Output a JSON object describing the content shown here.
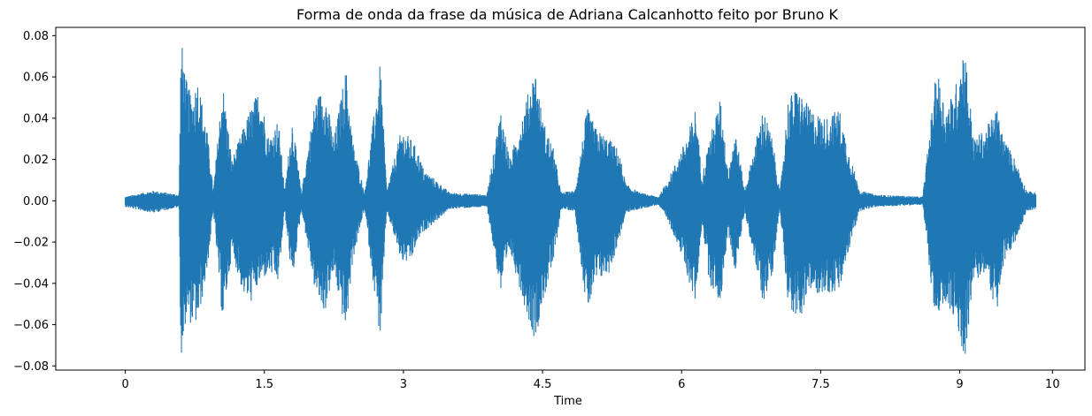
{
  "chart_data": {
    "type": "area",
    "title": "Forma de onda da frase da música de Adriana Calcanhotto feito por Bruno K",
    "xlabel": "Time",
    "ylabel": "",
    "xlim": [
      -0.75,
      10.35
    ],
    "ylim": [
      -0.082,
      0.084
    ],
    "x_ticks": [
      0,
      1.5,
      3,
      4.5,
      6,
      7.5,
      9,
      10
    ],
    "x_tick_labels": [
      "0",
      "1.5",
      "3",
      "4.5",
      "6",
      "7.5",
      "9",
      "10"
    ],
    "y_ticks": [
      -0.08,
      -0.06,
      -0.04,
      -0.02,
      0.0,
      0.02,
      0.04,
      0.06,
      0.08
    ],
    "y_tick_labels": [
      "−0.08",
      "−0.06",
      "−0.04",
      "−0.02",
      "0.00",
      "0.02",
      "0.04",
      "0.06",
      "0.08"
    ],
    "grid": false,
    "color": "#1f77b4",
    "series": [
      {
        "duration": 9.82,
        "envelope_points": [
          {
            "t": 0.0,
            "max": 0.002,
            "min": -0.003
          },
          {
            "t": 0.3,
            "max": 0.005,
            "min": -0.006
          },
          {
            "t": 0.58,
            "max": 0.003,
            "min": -0.003
          },
          {
            "t": 0.6,
            "max": 0.075,
            "min": -0.076
          },
          {
            "t": 0.62,
            "max": 0.075,
            "min": -0.076
          },
          {
            "t": 0.65,
            "max": 0.06,
            "min": -0.058
          },
          {
            "t": 0.72,
            "max": 0.05,
            "min": -0.06
          },
          {
            "t": 0.78,
            "max": 0.06,
            "min": -0.06
          },
          {
            "t": 0.88,
            "max": 0.035,
            "min": -0.035
          },
          {
            "t": 0.95,
            "max": 0.005,
            "min": -0.005
          },
          {
            "t": 1.05,
            "max": 0.058,
            "min": -0.06
          },
          {
            "t": 1.15,
            "max": 0.02,
            "min": -0.025
          },
          {
            "t": 1.27,
            "max": 0.035,
            "min": -0.045
          },
          {
            "t": 1.35,
            "max": 0.045,
            "min": -0.05
          },
          {
            "t": 1.45,
            "max": 0.055,
            "min": -0.04
          },
          {
            "t": 1.55,
            "max": 0.03,
            "min": -0.035
          },
          {
            "t": 1.65,
            "max": 0.04,
            "min": -0.04
          },
          {
            "t": 1.72,
            "max": 0.005,
            "min": -0.005
          },
          {
            "t": 1.8,
            "max": 0.04,
            "min": -0.04
          },
          {
            "t": 1.9,
            "max": 0.004,
            "min": -0.004
          },
          {
            "t": 2.05,
            "max": 0.05,
            "min": -0.045
          },
          {
            "t": 2.15,
            "max": 0.055,
            "min": -0.055
          },
          {
            "t": 2.25,
            "max": 0.03,
            "min": -0.035
          },
          {
            "t": 2.38,
            "max": 0.065,
            "min": -0.065
          },
          {
            "t": 2.45,
            "max": 0.03,
            "min": -0.03
          },
          {
            "t": 2.58,
            "max": 0.004,
            "min": -0.004
          },
          {
            "t": 2.75,
            "max": 0.067,
            "min": -0.068
          },
          {
            "t": 2.82,
            "max": 0.005,
            "min": -0.005
          },
          {
            "t": 2.98,
            "max": 0.035,
            "min": -0.03
          },
          {
            "t": 3.08,
            "max": 0.03,
            "min": -0.03
          },
          {
            "t": 3.15,
            "max": 0.025,
            "min": -0.02
          },
          {
            "t": 3.22,
            "max": 0.015,
            "min": -0.015
          },
          {
            "t": 3.35,
            "max": 0.01,
            "min": -0.01
          },
          {
            "t": 3.5,
            "max": 0.004,
            "min": -0.004
          },
          {
            "t": 3.9,
            "max": 0.003,
            "min": -0.003
          },
          {
            "t": 4.05,
            "max": 0.045,
            "min": -0.045
          },
          {
            "t": 4.15,
            "max": 0.02,
            "min": -0.025
          },
          {
            "t": 4.3,
            "max": 0.045,
            "min": -0.05
          },
          {
            "t": 4.42,
            "max": 0.065,
            "min": -0.068
          },
          {
            "t": 4.5,
            "max": 0.04,
            "min": -0.05
          },
          {
            "t": 4.62,
            "max": 0.025,
            "min": -0.03
          },
          {
            "t": 4.7,
            "max": 0.004,
            "min": -0.004
          },
          {
            "t": 4.85,
            "max": 0.005,
            "min": -0.005
          },
          {
            "t": 4.98,
            "max": 0.045,
            "min": -0.055
          },
          {
            "t": 5.08,
            "max": 0.035,
            "min": -0.04
          },
          {
            "t": 5.22,
            "max": 0.03,
            "min": -0.035
          },
          {
            "t": 5.32,
            "max": 0.025,
            "min": -0.02
          },
          {
            "t": 5.4,
            "max": 0.008,
            "min": -0.006
          },
          {
            "t": 5.55,
            "max": 0.004,
            "min": -0.004
          },
          {
            "t": 5.75,
            "max": 0.002,
            "min": -0.002
          },
          {
            "t": 5.85,
            "max": 0.01,
            "min": -0.01
          },
          {
            "t": 5.95,
            "max": 0.02,
            "min": -0.02
          },
          {
            "t": 6.05,
            "max": 0.03,
            "min": -0.035
          },
          {
            "t": 6.15,
            "max": 0.045,
            "min": -0.05
          },
          {
            "t": 6.22,
            "max": 0.012,
            "min": -0.01
          },
          {
            "t": 6.3,
            "max": 0.03,
            "min": -0.04
          },
          {
            "t": 6.42,
            "max": 0.05,
            "min": -0.05
          },
          {
            "t": 6.5,
            "max": 0.015,
            "min": -0.015
          },
          {
            "t": 6.58,
            "max": 0.035,
            "min": -0.035
          },
          {
            "t": 6.68,
            "max": 0.005,
            "min": -0.005
          },
          {
            "t": 6.88,
            "max": 0.045,
            "min": -0.05
          },
          {
            "t": 6.98,
            "max": 0.03,
            "min": -0.035
          },
          {
            "t": 7.06,
            "max": 0.004,
            "min": -0.004
          },
          {
            "t": 7.15,
            "max": 0.05,
            "min": -0.05
          },
          {
            "t": 7.25,
            "max": 0.055,
            "min": -0.06
          },
          {
            "t": 7.38,
            "max": 0.045,
            "min": -0.045
          },
          {
            "t": 7.55,
            "max": 0.04,
            "min": -0.045
          },
          {
            "t": 7.7,
            "max": 0.045,
            "min": -0.045
          },
          {
            "t": 7.8,
            "max": 0.025,
            "min": -0.025
          },
          {
            "t": 7.92,
            "max": 0.005,
            "min": -0.005
          },
          {
            "t": 8.1,
            "max": 0.003,
            "min": -0.003
          },
          {
            "t": 8.6,
            "max": 0.002,
            "min": -0.002
          },
          {
            "t": 8.75,
            "max": 0.065,
            "min": -0.065
          },
          {
            "t": 8.85,
            "max": 0.045,
            "min": -0.05
          },
          {
            "t": 8.95,
            "max": 0.055,
            "min": -0.06
          },
          {
            "t": 9.05,
            "max": 0.077,
            "min": -0.078
          },
          {
            "t": 9.15,
            "max": 0.03,
            "min": -0.04
          },
          {
            "t": 9.28,
            "max": 0.035,
            "min": -0.035
          },
          {
            "t": 9.4,
            "max": 0.045,
            "min": -0.055
          },
          {
            "t": 9.48,
            "max": 0.03,
            "min": -0.03
          },
          {
            "t": 9.6,
            "max": 0.02,
            "min": -0.02
          },
          {
            "t": 9.72,
            "max": 0.005,
            "min": -0.005
          },
          {
            "t": 9.82,
            "max": 0.004,
            "min": -0.004
          }
        ]
      }
    ]
  }
}
